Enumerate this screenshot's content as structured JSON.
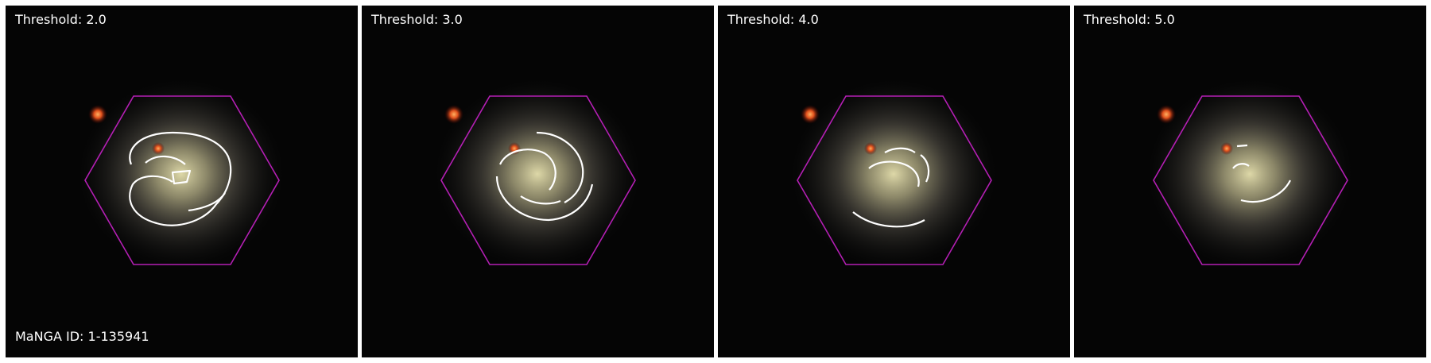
{
  "panels": [
    {
      "threshold_label": "Threshold: 2.0"
    },
    {
      "threshold_label": "Threshold: 3.0"
    },
    {
      "threshold_label": "Threshold: 4.0"
    },
    {
      "threshold_label": "Threshold: 5.0"
    }
  ],
  "galaxy": {
    "manga_id_label": "MaNGA ID: 1-135941"
  },
  "colors": {
    "background": "#050505",
    "hexagon": "#b41fb4",
    "contour": "#ffffff"
  }
}
